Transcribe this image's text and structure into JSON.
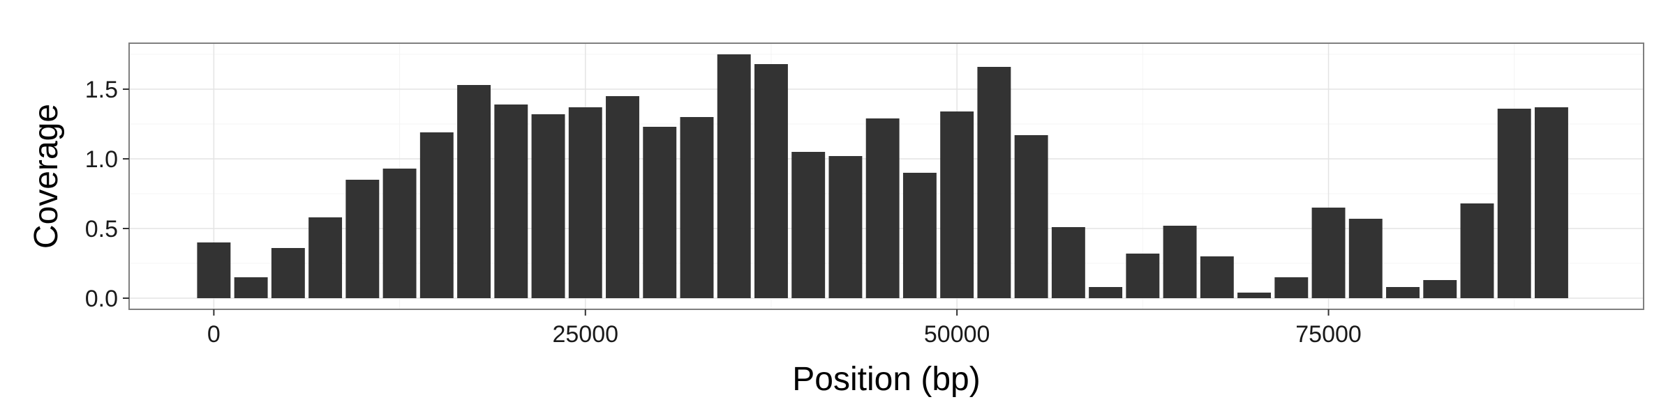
{
  "chart_data": {
    "type": "bar",
    "title": "",
    "xlabel": "Position (bp)",
    "ylabel": "Coverage",
    "x_ticks": [
      "0",
      "25000",
      "50000",
      "75000"
    ],
    "y_ticks": [
      "0.0",
      "0.5",
      "1.0",
      "1.5"
    ],
    "xlim": [
      -5700,
      96200
    ],
    "ylim": [
      -0.08,
      1.83
    ],
    "grid": true,
    "bin_width": 2500,
    "x": [
      0,
      2500,
      5000,
      7500,
      10000,
      12500,
      15000,
      17500,
      20000,
      22500,
      25000,
      27500,
      30000,
      32500,
      35000,
      37500,
      40000,
      42500,
      45000,
      47500,
      50000,
      52500,
      55000,
      57500,
      60000,
      62500,
      65000,
      67500,
      70000,
      72500,
      75000,
      77500,
      80000,
      82500,
      85000,
      87500,
      90000
    ],
    "values": [
      0.4,
      0.15,
      0.36,
      0.58,
      0.85,
      0.93,
      1.19,
      1.53,
      1.39,
      1.32,
      1.37,
      1.45,
      1.23,
      1.3,
      1.75,
      1.68,
      1.05,
      1.02,
      1.29,
      0.9,
      1.34,
      1.66,
      1.17,
      0.51,
      0.08,
      0.32,
      0.52,
      0.3,
      0.04,
      0.15,
      0.65,
      0.57,
      0.08,
      0.13,
      0.68,
      1.36,
      1.37
    ],
    "colors": {
      "bar": "#333333",
      "panel_bg": "#ffffff",
      "grid_major": "#e4e4e4",
      "grid_minor": "#f4f4f4",
      "border": "#7f7f7f",
      "tick": "#333333"
    }
  }
}
